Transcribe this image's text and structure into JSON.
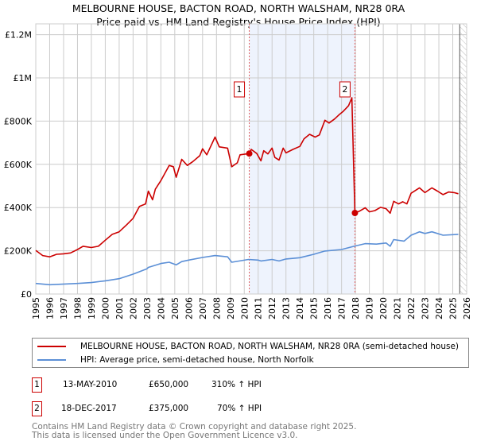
{
  "title": "MELBOURNE HOUSE, BACTON ROAD, NORTH WALSHAM, NR28 0RA",
  "subtitle": "Price paid vs. HM Land Registry's House Price Index (HPI)",
  "chart_data": {
    "type": "line",
    "title": "MELBOURNE HOUSE, BACTON ROAD, NORTH WALSHAM, NR28 0RA",
    "xlim": [
      1995,
      2026
    ],
    "ylim": [
      0,
      1250000
    ],
    "grid": true,
    "x_ticks": [
      1995,
      1996,
      1997,
      1998,
      1999,
      2000,
      2001,
      2002,
      2003,
      2004,
      2005,
      2006,
      2007,
      2008,
      2009,
      2010,
      2011,
      2012,
      2013,
      2014,
      2015,
      2016,
      2017,
      2018,
      2019,
      2020,
      2021,
      2022,
      2023,
      2024,
      2025,
      2026
    ],
    "y_ticks": [
      {
        "v": 0,
        "label": "£0"
      },
      {
        "v": 200000,
        "label": "£200K"
      },
      {
        "v": 400000,
        "label": "£400K"
      },
      {
        "v": 600000,
        "label": "£600K"
      },
      {
        "v": 800000,
        "label": "£800K"
      },
      {
        "v": 1000000,
        "label": "£1M"
      },
      {
        "v": 1200000,
        "label": "£1.2M"
      }
    ],
    "shaded_range": [
      2010.36,
      2017.96
    ],
    "future_hatch_from": 2025.5,
    "legend_placement": "below",
    "series": [
      {
        "name": "MELBOURNE HOUSE, BACTON ROAD, NORTH WALSHAM, NR28 0RA (semi-detached house)",
        "color": "#cc0000",
        "x": [
          1995,
          1995.5,
          1996,
          1996.5,
          1997,
          1997.5,
          1998,
          1998.4,
          1999,
          1999.5,
          2000,
          2000.5,
          2001,
          2001.55,
          2002,
          2002.46,
          2002.9,
          2003.1,
          2003.4,
          2003.6,
          2004,
          2004.6,
          2004.9,
          2005.1,
          2005.5,
          2005.9,
          2006.3,
          2006.8,
          2007,
          2007.3,
          2007.9,
          2008.2,
          2008.8,
          2009.1,
          2009.5,
          2009.7,
          2010.36,
          2010.5,
          2010.9,
          2011.2,
          2011.4,
          2011.7,
          2012,
          2012.2,
          2012.5,
          2012.8,
          2013,
          2013.5,
          2014,
          2014.3,
          2014.7,
          2015.1,
          2015.4,
          2015.8,
          2016.1,
          2016.5,
          2016.8,
          2017.1,
          2017.5,
          2017.74,
          2017.96,
          2018.3,
          2018.7,
          2019,
          2019.4,
          2019.8,
          2020.2,
          2020.5,
          2020.75,
          2021.1,
          2021.4,
          2021.7,
          2022,
          2022.6,
          2023,
          2023.5,
          2023.9,
          2024.3,
          2024.7,
          2025.1,
          2025.4
        ],
        "values": [
          202000,
          178000,
          172000,
          184000,
          186000,
          190000,
          206000,
          221000,
          215000,
          221000,
          249000,
          276000,
          288000,
          321000,
          350000,
          405000,
          417000,
          476000,
          436000,
          485000,
          525000,
          595000,
          589000,
          540000,
          623000,
          595000,
          613000,
          640000,
          672000,
          644000,
          726000,
          681000,
          675000,
          589000,
          607000,
          644000,
          650000,
          669000,
          650000,
          616000,
          663000,
          648000,
          675000,
          632000,
          620000,
          675000,
          653000,
          669000,
          683000,
          718000,
          739000,
          726000,
          736000,
          804000,
          791000,
          810000,
          828000,
          844000,
          871000,
          908000,
          375000,
          384000,
          399000,
          380000,
          386000,
          401000,
          395000,
          374000,
          429000,
          417000,
          427000,
          417000,
          466000,
          491000,
          469000,
          491000,
          476000,
          460000,
          472000,
          469000,
          464000
        ]
      },
      {
        "name": "HPI: Average price, semi-detached house, North Norfolk",
        "color": "#5b8fd6",
        "x": [
          1995,
          1996,
          1998,
          1999,
          2000,
          2001,
          2002,
          2003,
          2003.1,
          2004,
          2004.6,
          2005.1,
          2005.5,
          2006,
          2007,
          2007.9,
          2008.8,
          2009.1,
          2010.3,
          2011,
          2011.2,
          2012,
          2012.5,
          2013,
          2014,
          2015,
          2015.8,
          2017,
          2017.9,
          2018.7,
          2019.5,
          2020.2,
          2020.5,
          2020.75,
          2021.5,
          2022,
          2022.6,
          2023,
          2023.5,
          2024.3,
          2025.4
        ],
        "values": [
          49000,
          43000,
          49000,
          53000,
          61000,
          71000,
          92000,
          117000,
          123000,
          141000,
          147000,
          135000,
          150000,
          157000,
          169000,
          178000,
          172000,
          147000,
          160000,
          157000,
          153000,
          160000,
          153000,
          162000,
          168000,
          184000,
          199000,
          206000,
          221000,
          233000,
          231000,
          236000,
          221000,
          252000,
          245000,
          272000,
          288000,
          280000,
          288000,
          272000,
          276000
        ]
      }
    ],
    "annotations": [
      {
        "label": "1",
        "x": 2010.36,
        "y": 650000
      },
      {
        "label": "2",
        "x": 2017.96,
        "y": 375000
      }
    ]
  },
  "legend": [
    {
      "label": "MELBOURNE HOUSE, BACTON ROAD, NORTH WALSHAM, NR28 0RA (semi-detached house)",
      "color": "#cc0000"
    },
    {
      "label": "HPI: Average price, semi-detached house, North Norfolk",
      "color": "#5b8fd6"
    }
  ],
  "sales": [
    {
      "num": "1",
      "date": "13-MAY-2010",
      "price": "£650,000",
      "hpi": "310% ↑ HPI"
    },
    {
      "num": "2",
      "date": "18-DEC-2017",
      "price": "£375,000",
      "hpi": "70% ↑ HPI"
    }
  ],
  "footer": {
    "line1": "Contains HM Land Registry data © Crown copyright and database right 2025.",
    "line2": "This data is licensed under the Open Government Licence v3.0."
  }
}
